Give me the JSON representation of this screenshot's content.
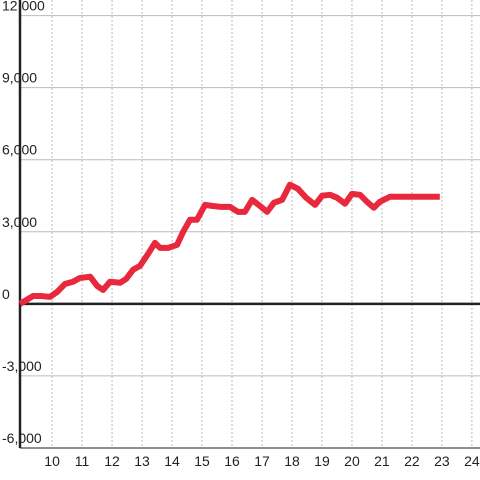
{
  "chart_data": {
    "type": "line",
    "x": [
      8.93,
      9.37,
      9.6,
      9.93,
      10.17,
      10.43,
      10.7,
      10.93,
      11.27,
      11.5,
      11.7,
      11.93,
      12.27,
      12.47,
      12.7,
      12.93,
      13.2,
      13.43,
      13.6,
      13.87,
      14.17,
      14.37,
      14.6,
      14.83,
      15.1,
      15.33,
      15.6,
      15.93,
      16.2,
      16.43,
      16.67,
      16.93,
      17.17,
      17.4,
      17.67,
      17.93,
      18.2,
      18.47,
      18.77,
      19.0,
      19.27,
      19.5,
      19.77,
      20.0,
      20.27,
      20.5,
      20.73,
      20.93,
      21.27,
      21.6,
      22.93
    ],
    "series": [
      {
        "color": "#e8283c",
        "values": [
          0,
          330,
          330,
          290,
          500,
          830,
          920,
          1080,
          1130,
          750,
          580,
          920,
          880,
          1040,
          1420,
          1580,
          2080,
          2540,
          2330,
          2330,
          2460,
          3000,
          3500,
          3500,
          4120,
          4080,
          4040,
          4040,
          3830,
          3830,
          4330,
          4080,
          3830,
          4210,
          4330,
          4960,
          4790,
          4420,
          4120,
          4500,
          4540,
          4420,
          4170,
          4580,
          4540,
          4250,
          4000,
          4250,
          4460,
          4460,
          4460
        ]
      }
    ],
    "xlim": [
      8.93,
      24.27
    ],
    "xticks": [
      10,
      11,
      12,
      13,
      14,
      15,
      16,
      17,
      18,
      19,
      20,
      21,
      22,
      23,
      24
    ],
    "ylim": [
      -6000,
      12650
    ],
    "yticks": [
      {
        "value": -6000,
        "label": "-6,000"
      },
      {
        "value": -3000,
        "label": "-3,000"
      },
      0,
      {
        "value": 3000,
        "label": "3,000"
      },
      {
        "value": 6000,
        "label": "6,000"
      },
      {
        "value": 9000,
        "label": "9,000"
      },
      {
        "value": 12000,
        "label": "12,000"
      }
    ],
    "grid": true
  }
}
